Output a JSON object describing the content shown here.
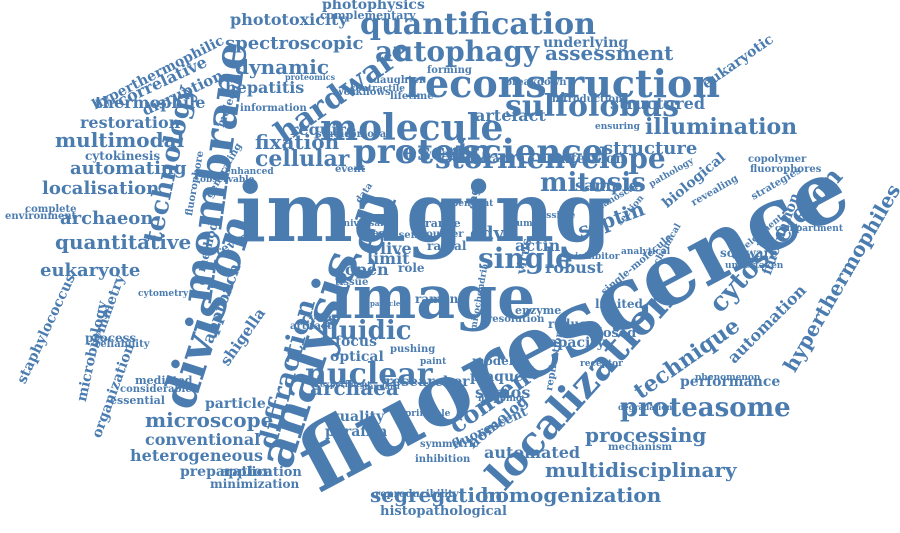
{
  "colors": {
    "word": "#4b7cb0",
    "background": "#ffffff"
  },
  "words": [
    "fluorescence",
    "imaging",
    "image",
    "analysis",
    "division",
    "cell",
    "membrane",
    "localization",
    "reconstruction",
    "molecule",
    "science",
    "protein",
    "quantification",
    "hardware",
    "autophagy",
    "sulfolobus",
    "illumination",
    "stormenvelope",
    "single",
    "mitosis",
    "cytoskeleton",
    "hyperthermophiles",
    "technique",
    "proteasome",
    "nuclear",
    "fluidic",
    "technology",
    "escrt",
    "cellular",
    "fixation",
    "processing",
    "multidisciplinary",
    "homogenization",
    "archaea",
    "microscope",
    "diffraction",
    "content",
    "segregation",
    "quantitative",
    "eukaryote",
    "archaeon",
    "localisation",
    "automating",
    "multimodal",
    "thermophile",
    "restoration",
    "correlative",
    "disruption",
    "hyperthermophilic",
    "spectroscopic",
    "dynamic",
    "hepatitis",
    "assessment",
    "phototoxicity",
    "photophysics",
    "underlying",
    "complementary",
    "structured",
    "eukaryotic",
    "artefact",
    "infection",
    "structure",
    "sample",
    "biological",
    "septin",
    "cdvb",
    "actin",
    "robust",
    "live",
    "present",
    "limit",
    "open",
    "role",
    "software",
    "fluctuation",
    "automation",
    "performance",
    "shigella",
    "staphylococcus",
    "microbiology",
    "symmetry",
    "organization",
    "automated",
    "quality",
    "paraffin",
    "scmos",
    "conventional",
    "heterogeneous",
    "preparation",
    "application",
    "minimization",
    "histopathological",
    "homolog",
    "optical",
    "focus",
    "model",
    "capacity",
    "closed",
    "reduce",
    "limited",
    "require",
    "cytokinesis",
    "method",
    "approach",
    "particle",
    "plaque",
    "mechanism",
    "degradation",
    "process",
    "reliability",
    "artifact",
    "cycle",
    "radial",
    "raman",
    "tissue",
    "mitochondria",
    "workflows",
    "lifetime",
    "daughter",
    "forming",
    "breakdown",
    "proteomics",
    "molecular",
    "fluorophore",
    "environment",
    "complete",
    "mediated",
    "considerable",
    "essential",
    "cytometry",
    "reveal",
    "generating",
    "fluorophores",
    "copolymer",
    "strategies",
    "revealing",
    "compartment",
    "development",
    "undertaken",
    "phenomenon",
    "fluorescent",
    "symmetric",
    "inhibition",
    "reproducibility",
    "replication",
    "receptor",
    "mapping",
    "researcher",
    "principle",
    "paint",
    "pushing",
    "experiment",
    "standard",
    "event",
    "removal",
    "studies",
    "introduction",
    "ensuring",
    "contractile",
    "information",
    "enhanced",
    "observable",
    "virus",
    "enzyme",
    "inhibitor",
    "analytical",
    "chemical",
    "pathology",
    "possible",
    "human",
    "section",
    "nanoscale",
    "counter",
    "system",
    "temporal",
    "range",
    "cage",
    "data",
    "universal",
    "imaged",
    "resolution",
    "single-molecule",
    "dependent",
    "particles"
  ]
}
